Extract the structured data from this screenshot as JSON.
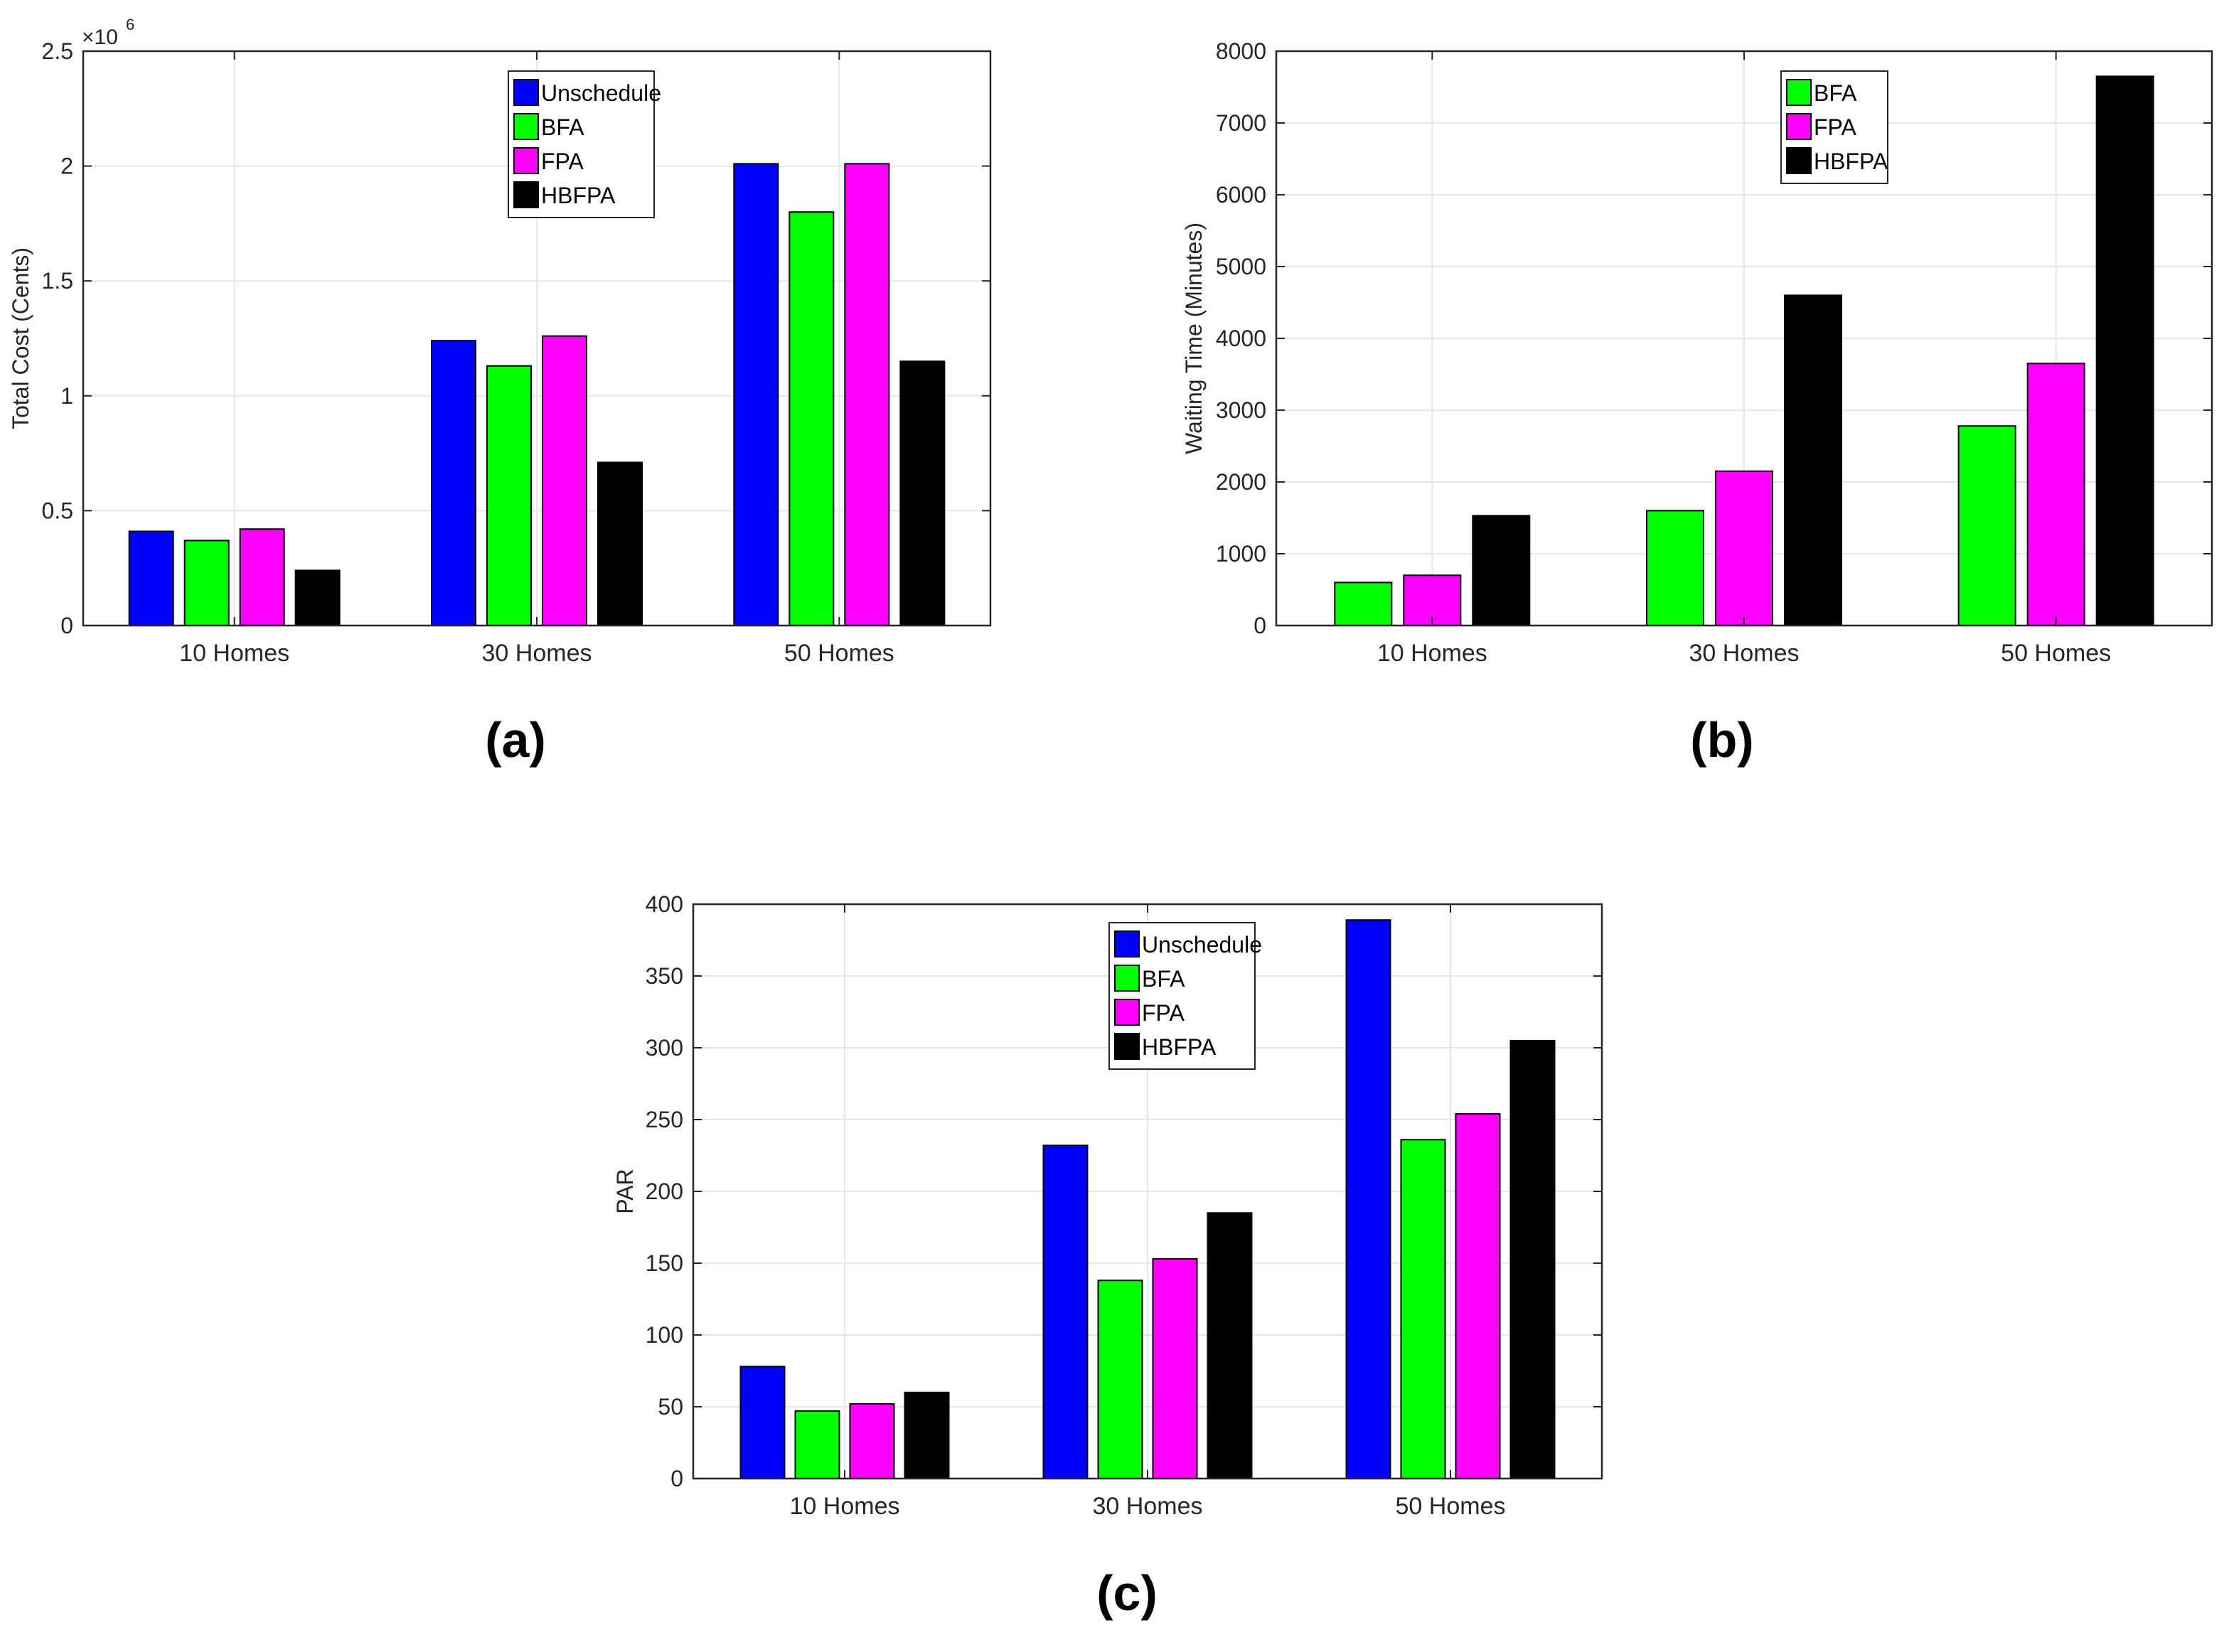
{
  "chart_data": [
    {
      "id": "a",
      "type": "bar",
      "title": "",
      "caption": "(a)",
      "xlabel": "",
      "ylabel": "Total Cost (Cents)",
      "ylim": [
        0,
        2.5
      ],
      "y_exponent_label": "×10",
      "y_exponent_power": "6",
      "yticks": [
        0,
        0.5,
        1,
        1.5,
        2,
        2.5
      ],
      "ytick_labels": [
        "0",
        "0.5",
        "1",
        "1.5",
        "2",
        "2.5"
      ],
      "grid": true,
      "legend_position": "top-center",
      "categories": [
        "10 Homes",
        "30 Homes",
        "50 Homes"
      ],
      "series": [
        {
          "name": "Unschedule",
          "color": "#0000ff",
          "values": [
            0.41,
            1.24,
            2.01
          ]
        },
        {
          "name": "BFA",
          "color": "#00ff00",
          "values": [
            0.37,
            1.13,
            1.8
          ]
        },
        {
          "name": "FPA",
          "color": "#ff00ff",
          "values": [
            0.42,
            1.26,
            2.01
          ]
        },
        {
          "name": "HBFPA",
          "color": "#000000",
          "values": [
            0.24,
            0.71,
            1.15
          ]
        }
      ]
    },
    {
      "id": "b",
      "type": "bar",
      "title": "",
      "caption": "(b)",
      "xlabel": "",
      "ylabel": "Waiting Time (Minutes)",
      "ylim": [
        0,
        8000
      ],
      "yticks": [
        0,
        1000,
        2000,
        3000,
        4000,
        5000,
        6000,
        7000,
        8000
      ],
      "ytick_labels": [
        "0",
        "1000",
        "2000",
        "3000",
        "4000",
        "5000",
        "6000",
        "7000",
        "8000"
      ],
      "grid": true,
      "legend_position": "top-center",
      "categories": [
        "10 Homes",
        "30 Homes",
        "50 Homes"
      ],
      "series": [
        {
          "name": "BFA",
          "color": "#00ff00",
          "values": [
            600,
            1600,
            2780
          ]
        },
        {
          "name": "FPA",
          "color": "#ff00ff",
          "values": [
            700,
            2150,
            3650
          ]
        },
        {
          "name": "HBFPA",
          "color": "#000000",
          "values": [
            1530,
            4600,
            7650
          ]
        }
      ]
    },
    {
      "id": "c",
      "type": "bar",
      "title": "",
      "caption": "(c)",
      "xlabel": "",
      "ylabel": "PAR",
      "ylim": [
        0,
        400
      ],
      "yticks": [
        0,
        50,
        100,
        150,
        200,
        250,
        300,
        350,
        400
      ],
      "ytick_labels": [
        "0",
        "50",
        "100",
        "150",
        "200",
        "250",
        "300",
        "350",
        "400"
      ],
      "grid": true,
      "legend_position": "top-center",
      "categories": [
        "10 Homes",
        "30 Homes",
        "50 Homes"
      ],
      "series": [
        {
          "name": "Unschedule",
          "color": "#0000ff",
          "values": [
            78,
            232,
            389
          ]
        },
        {
          "name": "BFA",
          "color": "#00ff00",
          "values": [
            47,
            138,
            236
          ]
        },
        {
          "name": "FPA",
          "color": "#ff00ff",
          "values": [
            52,
            153,
            254
          ]
        },
        {
          "name": "HBFPA",
          "color": "#000000",
          "values": [
            60,
            185,
            305
          ]
        }
      ]
    }
  ]
}
